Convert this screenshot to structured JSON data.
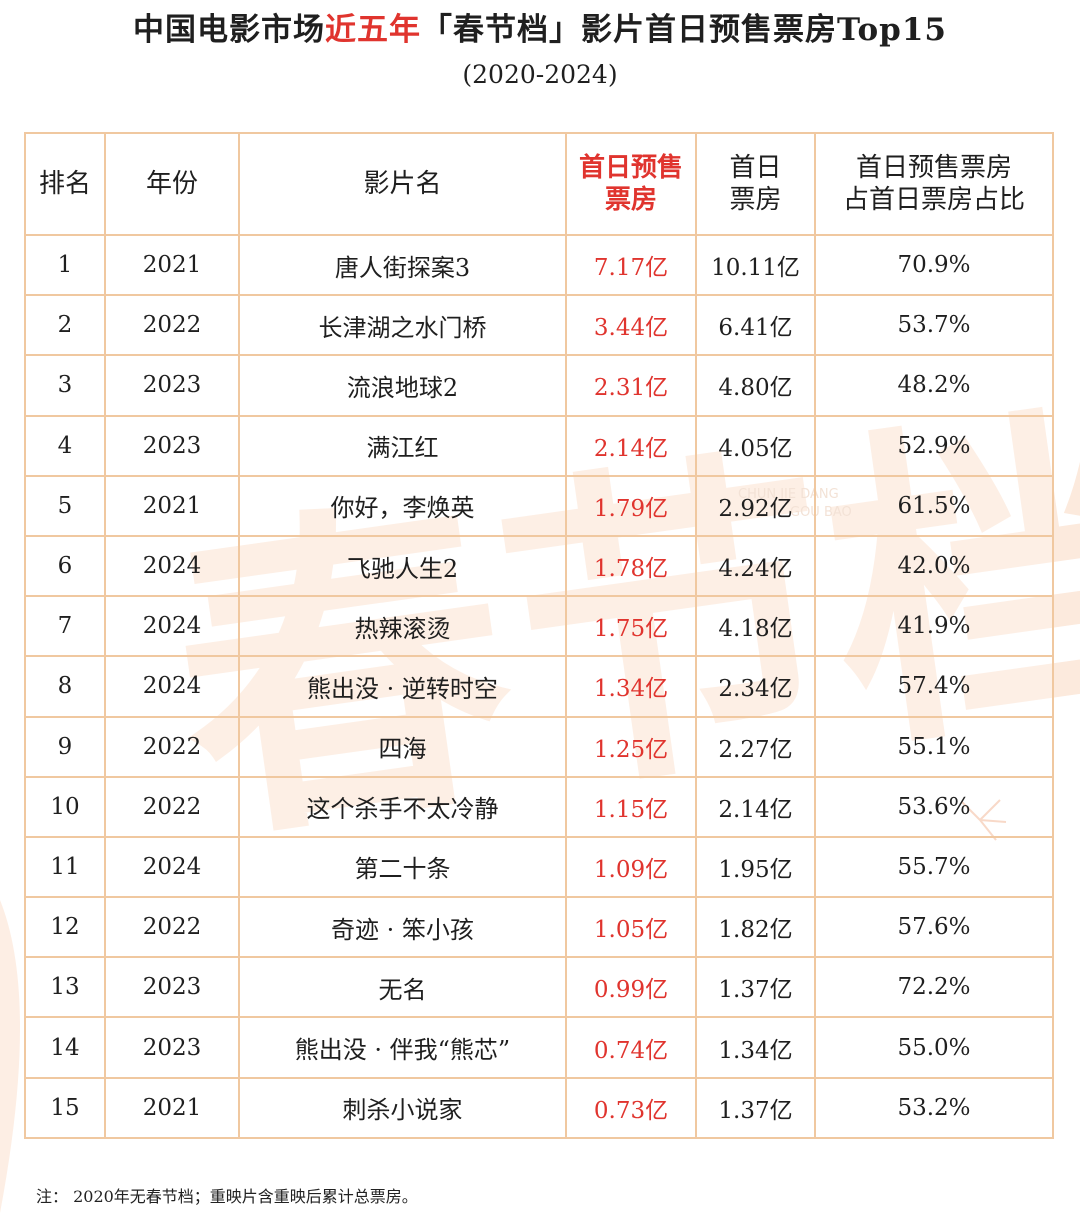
{
  "header": {
    "title_part1": "中国电影市场",
    "title_highlight": "近五年",
    "title_part2": "「春节档」影片首日预售票房Top15",
    "subtitle": "(2020-2024)"
  },
  "colors": {
    "accent_red": "#e0342e",
    "border": "#f0c8a0",
    "watermark": "#fbe3d2"
  },
  "chart_data": {
    "type": "table",
    "columns": [
      "排名",
      "年份",
      "影片名",
      "首日预售\n票房",
      "首日\n票房",
      "首日预售票房\n占首日票房占比"
    ],
    "rows": [
      [
        "1",
        "2021",
        "唐人街探案3",
        "7.17亿",
        "10.11亿",
        "70.9%"
      ],
      [
        "2",
        "2022",
        "长津湖之水门桥",
        "3.44亿",
        "6.41亿",
        "53.7%"
      ],
      [
        "3",
        "2023",
        "流浪地球2",
        "2.31亿",
        "4.80亿",
        "48.2%"
      ],
      [
        "4",
        "2023",
        "满江红",
        "2.14亿",
        "4.05亿",
        "52.9%"
      ],
      [
        "5",
        "2021",
        "你好，李焕英",
        "1.79亿",
        "2.92亿",
        "61.5%"
      ],
      [
        "6",
        "2024",
        "飞驰人生2",
        "1.78亿",
        "4.24亿",
        "42.0%"
      ],
      [
        "7",
        "2024",
        "热辣滚烫",
        "1.75亿",
        "4.18亿",
        "41.9%"
      ],
      [
        "8",
        "2024",
        "熊出没 · 逆转时空",
        "1.34亿",
        "2.34亿",
        "57.4%"
      ],
      [
        "9",
        "2022",
        "四海",
        "1.25亿",
        "2.27亿",
        "55.1%"
      ],
      [
        "10",
        "2022",
        "这个杀手不太冷静",
        "1.15亿",
        "2.14亿",
        "53.6%"
      ],
      [
        "11",
        "2024",
        "第二十条",
        "1.09亿",
        "1.95亿",
        "55.7%"
      ],
      [
        "12",
        "2022",
        "奇迹 · 笨小孩",
        "1.05亿",
        "1.82亿",
        "57.6%"
      ],
      [
        "13",
        "2023",
        "无名",
        "0.99亿",
        "1.37亿",
        "72.2%"
      ],
      [
        "14",
        "2023",
        "熊出没 · 伴我“熊芯”",
        "0.74亿",
        "1.34亿",
        "55.0%"
      ],
      [
        "15",
        "2021",
        "刺杀小说家",
        "0.73亿",
        "1.37亿",
        "53.2%"
      ]
    ]
  },
  "watermark": {
    "text": "春节档",
    "caption_line1": "CHUN JIE DANG",
    "caption_line2": "GOU BAO"
  },
  "footnote": "注：  2020年无春节档；重映片含重映后累计总票房。"
}
